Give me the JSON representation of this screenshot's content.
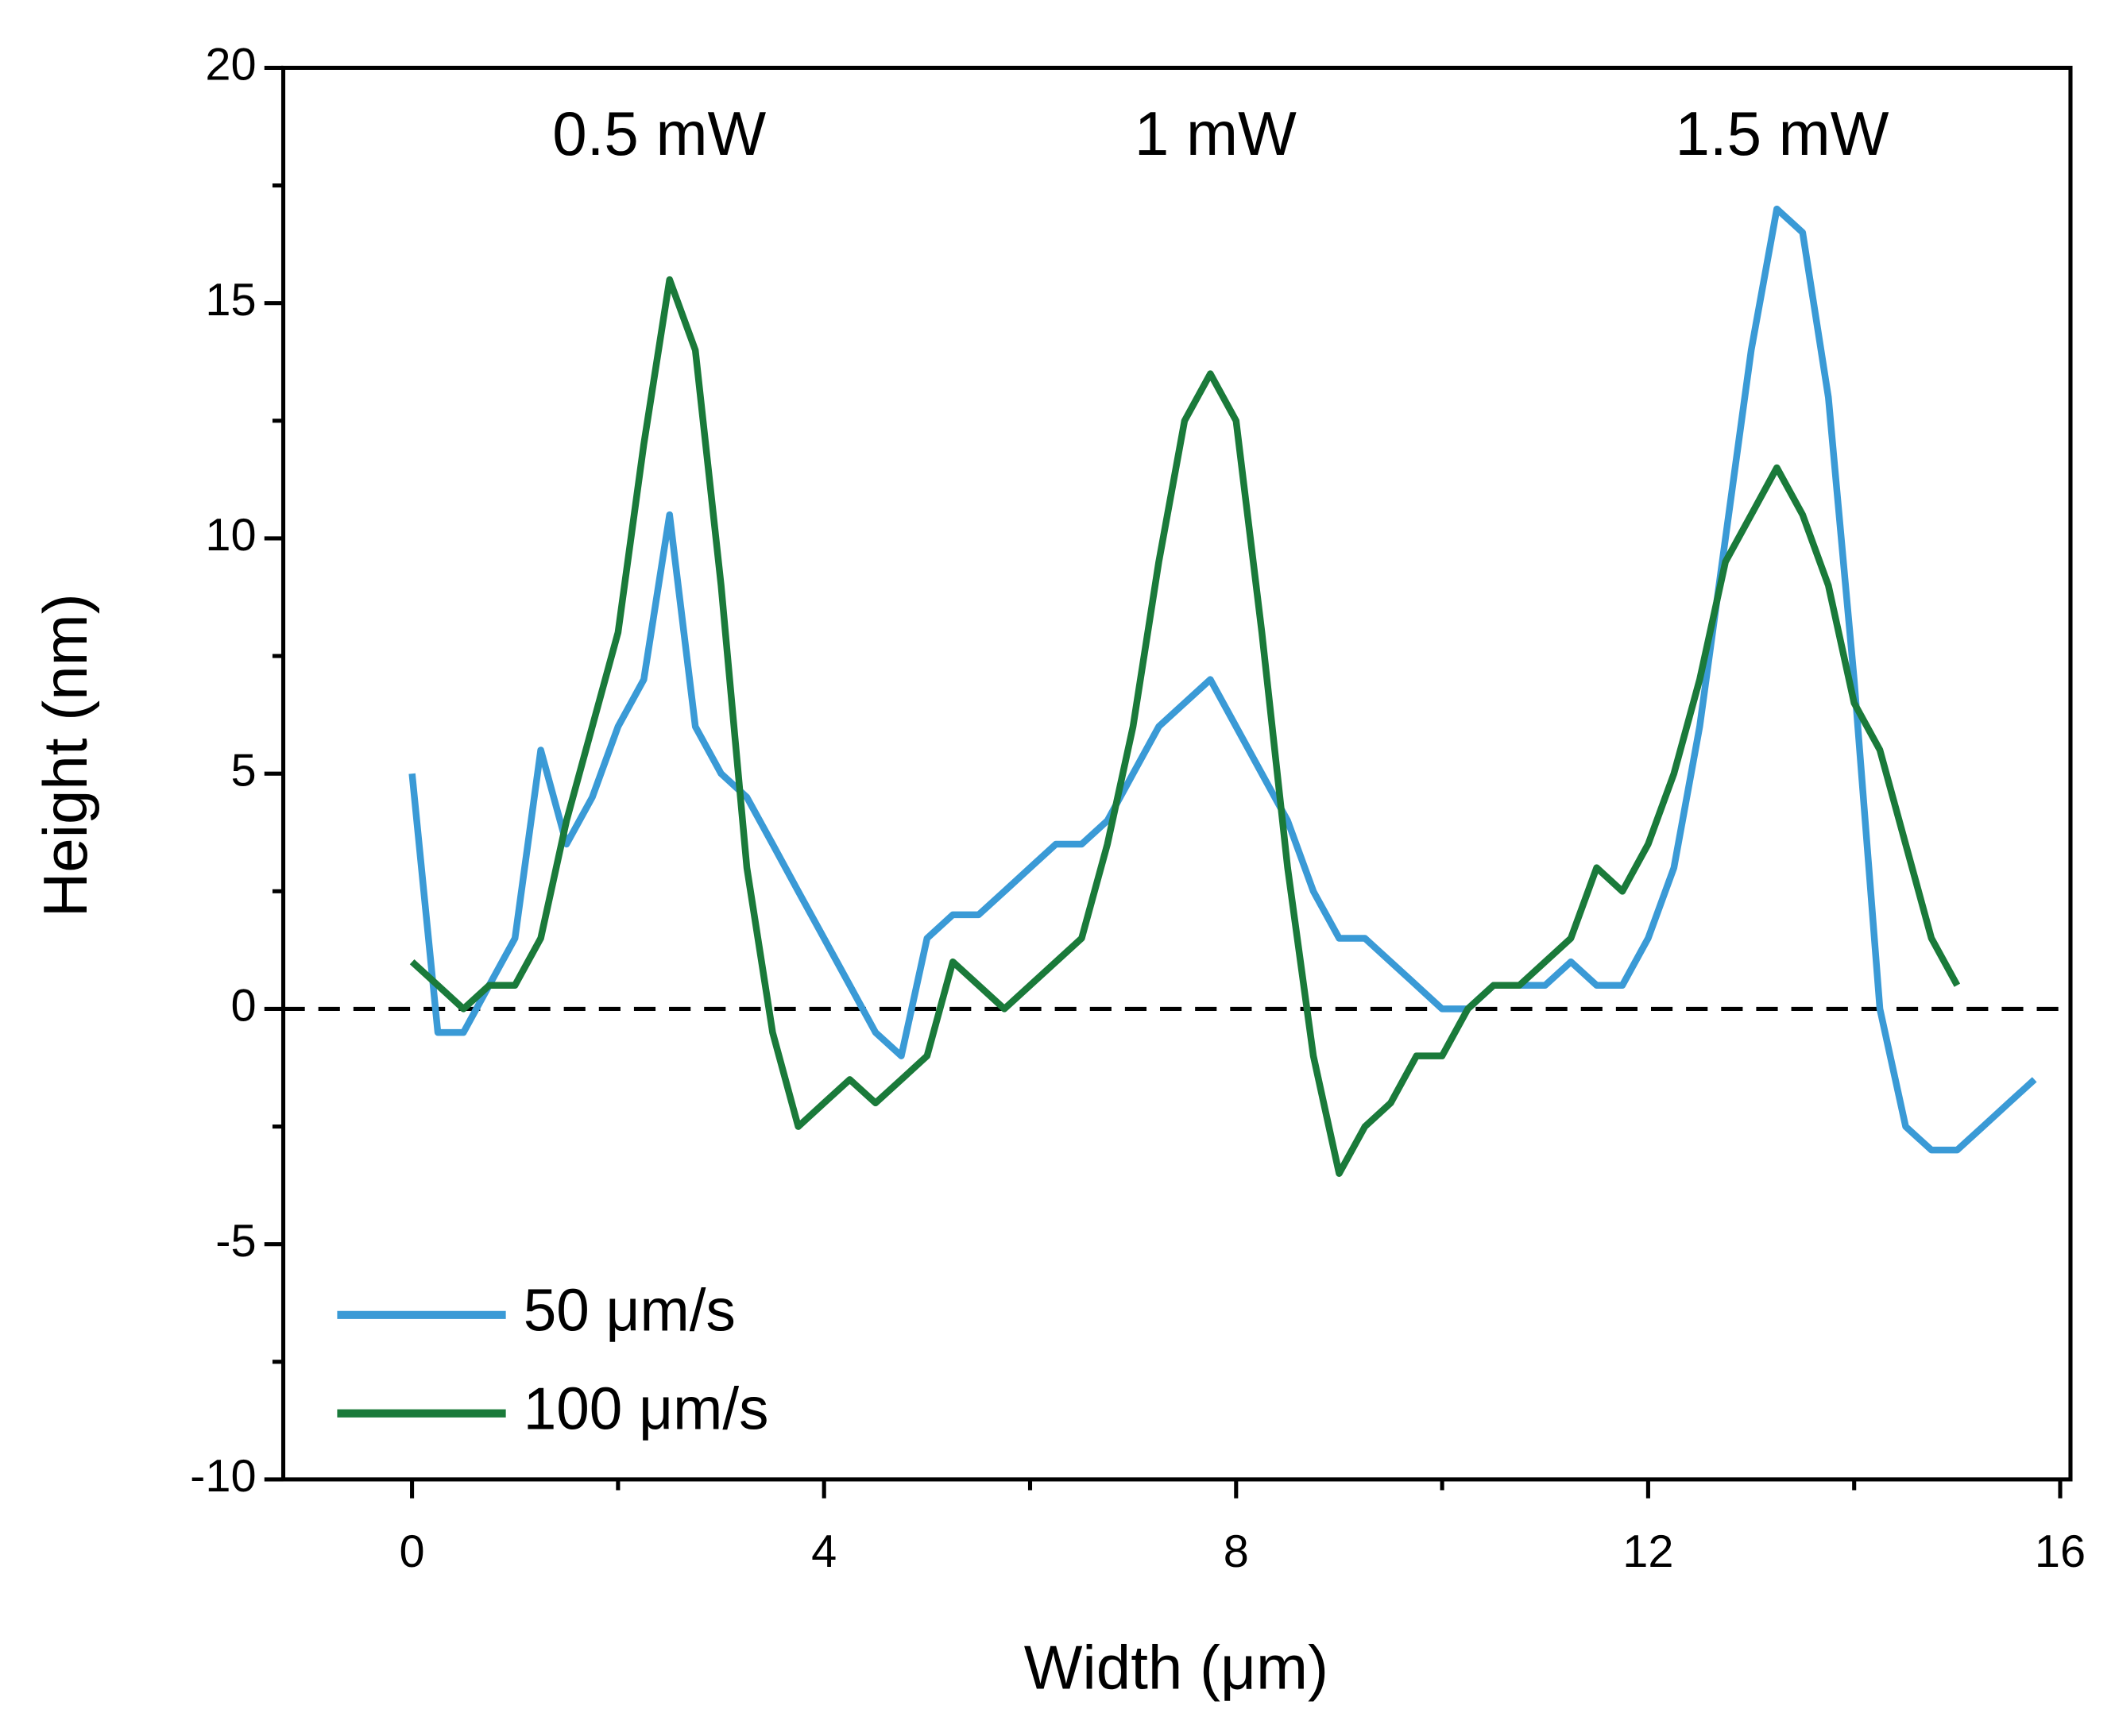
{
  "chart_data": {
    "type": "line",
    "xlabel": "Width (μm)",
    "ylabel": "Height (nm)",
    "xlim": [
      -1.25,
      16.1
    ],
    "ylim": [
      -10,
      20
    ],
    "xticks": [
      0,
      4,
      8,
      12,
      16
    ],
    "yticks": [
      -10,
      -5,
      0,
      5,
      10,
      15,
      20
    ],
    "xminorticks": [
      2,
      6,
      10,
      14
    ],
    "yminorticks": [
      -7.5,
      -2.5,
      2.5,
      7.5,
      12.5,
      17.5
    ],
    "hline": 0,
    "legend": "lower left",
    "annotations": [
      {
        "text": "0.5 mW",
        "x": 2.4,
        "y": 18.5
      },
      {
        "text": "1 mW",
        "x": 7.8,
        "y": 18.5
      },
      {
        "text": "1.5 mW",
        "x": 13.3,
        "y": 18.5
      }
    ],
    "series": [
      {
        "name": "50 μm/s",
        "color": "#3a9ad6",
        "x": [
          0,
          0.25,
          0.5,
          0.75,
          1,
          1.25,
          1.5,
          1.75,
          2,
          2.25,
          2.5,
          2.75,
          3,
          3.25,
          3.5,
          3.75,
          4,
          4.25,
          4.5,
          4.75,
          5,
          5.25,
          5.5,
          5.75,
          6,
          6.25,
          6.5,
          6.75,
          7,
          7.25,
          7.5,
          7.75,
          8,
          8.25,
          8.5,
          8.75,
          9,
          9.25,
          9.5,
          9.75,
          10,
          10.25,
          10.5,
          10.75,
          11,
          11.25,
          11.5,
          11.75,
          12,
          12.25,
          12.5,
          12.75,
          13,
          13.25,
          13.5,
          13.75,
          14,
          14.25,
          14.5,
          14.75,
          15,
          15.25,
          15.5,
          15.75
        ],
        "values": [
          5,
          -0.5,
          -0.5,
          0.5,
          1.5,
          5.5,
          3.5,
          4.5,
          6,
          7,
          10.5,
          6,
          5,
          4.5,
          3.5,
          2.5,
          1.5,
          0.5,
          -0.5,
          -1,
          1.5,
          2,
          2,
          2.5,
          3,
          3.5,
          3.5,
          4,
          5,
          6,
          6.5,
          7,
          6,
          5,
          4,
          2.5,
          1.5,
          1.5,
          1,
          0.5,
          0,
          0,
          0.5,
          0.5,
          0.5,
          1,
          0.5,
          0.5,
          1.5,
          3,
          6,
          10,
          14,
          17,
          16.5,
          13,
          7,
          0,
          -2.5,
          -3,
          -3,
          -2.5,
          -2,
          -1.5
        ]
      },
      {
        "name": "100 μm/s",
        "color": "#1a7a3a",
        "x": [
          0,
          0.25,
          0.5,
          0.75,
          1,
          1.25,
          1.5,
          1.75,
          2,
          2.25,
          2.5,
          2.75,
          3,
          3.25,
          3.5,
          3.75,
          4,
          4.25,
          4.5,
          4.75,
          5,
          5.25,
          5.5,
          5.75,
          6,
          6.25,
          6.5,
          6.75,
          7,
          7.25,
          7.5,
          7.75,
          8,
          8.25,
          8.5,
          8.75,
          9,
          9.25,
          9.5,
          9.75,
          10,
          10.25,
          10.5,
          10.75,
          11,
          11.25,
          11.5,
          11.75,
          12,
          12.25,
          12.5,
          12.75,
          13,
          13.25,
          13.5,
          13.75,
          14,
          14.25,
          14.5,
          14.75,
          15
        ],
        "values": [
          1,
          0.5,
          0,
          0.5,
          0.5,
          1.5,
          4,
          6,
          8,
          12,
          15.5,
          14,
          9,
          3,
          -0.5,
          -2.5,
          -2,
          -1.5,
          -2,
          -1.5,
          -1,
          1,
          0.5,
          0,
          0.5,
          1,
          1.5,
          3.5,
          6,
          9.5,
          12.5,
          13.5,
          12.5,
          8,
          3,
          -1,
          -3.5,
          -2.5,
          -2,
          -1,
          -1,
          0,
          0.5,
          0.5,
          1,
          1.5,
          3,
          2.5,
          3.5,
          5,
          7,
          9.5,
          10.5,
          11.5,
          10.5,
          9,
          6.5,
          5.5,
          3.5,
          1.5,
          0.5
        ]
      }
    ]
  }
}
